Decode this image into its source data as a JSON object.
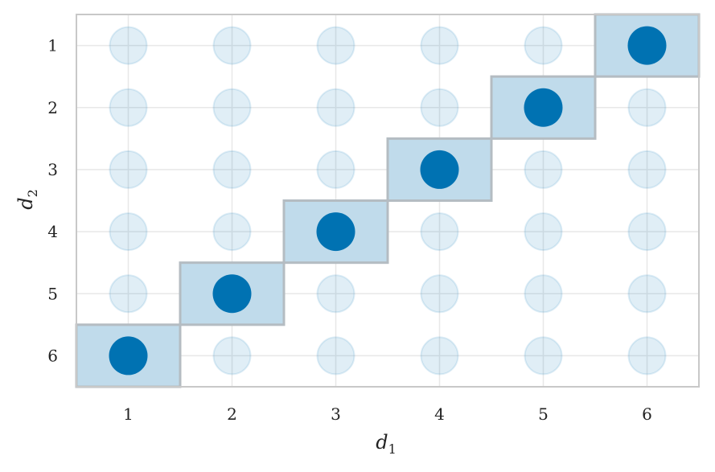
{
  "chart_data": {
    "type": "scatter",
    "title": "",
    "xlabel": "d",
    "xlabel_subscript": "1",
    "ylabel": "d",
    "ylabel_subscript": "2",
    "x_ticks": [
      1,
      2,
      3,
      4,
      5,
      6
    ],
    "y_ticks": [
      1,
      2,
      3,
      4,
      5,
      6
    ],
    "xlim": [
      0.5,
      6.5
    ],
    "ylim": [
      6.5,
      0.5
    ],
    "y_axis_inverted": true,
    "grid": true,
    "legend": "none",
    "background_points": {
      "description_values": "all combinations of d1 and d2 from 1 to 6",
      "x_values": [
        1,
        2,
        3,
        4,
        5,
        6
      ],
      "y_values": [
        1,
        2,
        3,
        4,
        5,
        6
      ],
      "color": "#0072b2",
      "opacity": 0.12
    },
    "highlighted_points": [
      {
        "x": 1,
        "y": 6
      },
      {
        "x": 2,
        "y": 5
      },
      {
        "x": 3,
        "y": 4
      },
      {
        "x": 4,
        "y": 3
      },
      {
        "x": 5,
        "y": 2
      },
      {
        "x": 6,
        "y": 1
      }
    ],
    "colors": {
      "point": "#0072b2",
      "highlight_cell_fill": "#c0dbeb",
      "highlight_cell_border": "#b4bcc2",
      "grid": "#e8e8e8",
      "frame": "#c8c8c8"
    }
  }
}
